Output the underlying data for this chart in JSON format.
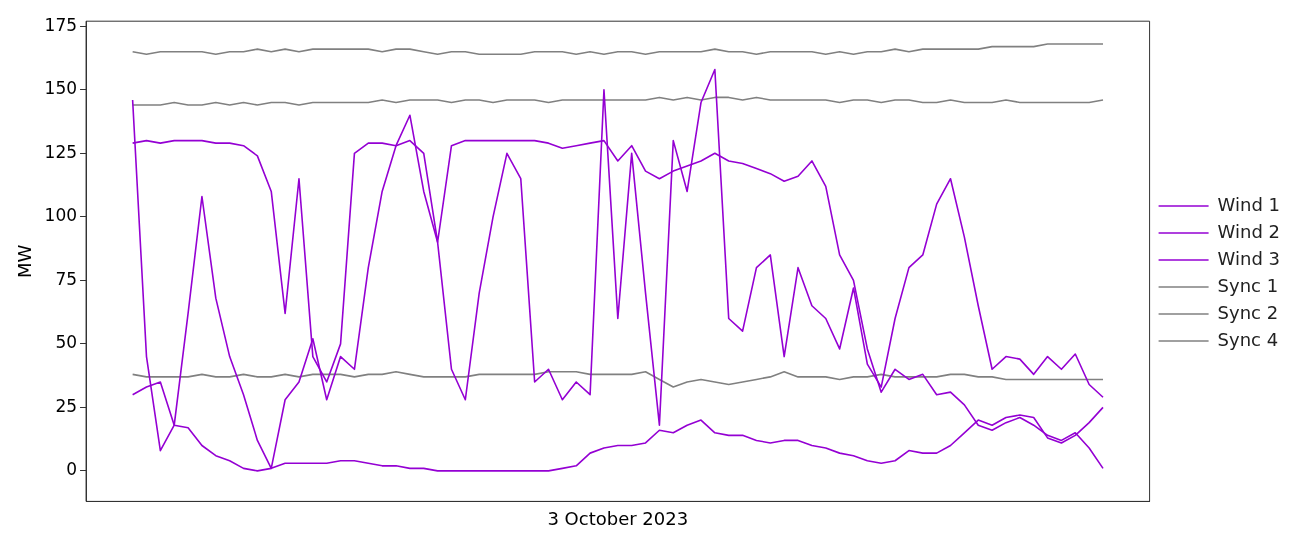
{
  "chart_data": {
    "type": "line",
    "xlabel": "3 October 2023",
    "ylabel": "MW",
    "ylim": [
      -12,
      177
    ],
    "yticks": [
      0,
      25,
      50,
      75,
      100,
      125,
      150,
      175
    ],
    "tick_labels": "y",
    "grid": false,
    "legend": "right",
    "marker": "none",
    "line_style": "solid",
    "categories": [
      null,
      null,
      null,
      null,
      null,
      null,
      null,
      null,
      null,
      null,
      null,
      null,
      null,
      null,
      null,
      null,
      null,
      null,
      null,
      null,
      null,
      null,
      null,
      null,
      null,
      null,
      null,
      null,
      null,
      null,
      null,
      null,
      null,
      null,
      null,
      null,
      null,
      null,
      null,
      null,
      null,
      null,
      null,
      null,
      null,
      null,
      null,
      null,
      null,
      null,
      null,
      null,
      null,
      null,
      null,
      null,
      null,
      null,
      null,
      null,
      null,
      null,
      null,
      null,
      null,
      null,
      null,
      null,
      null,
      null,
      null
    ],
    "series": [
      {
        "name": "Wind 1",
        "color": "#9400d3",
        "values": [
          129,
          130,
          129,
          130,
          130,
          130,
          129,
          129,
          128,
          124,
          110,
          62,
          115,
          45,
          35,
          50,
          125,
          129,
          129,
          128,
          130,
          125,
          90,
          128,
          130,
          130,
          130,
          130,
          130,
          130,
          129,
          127,
          128,
          129,
          130,
          122,
          128,
          118,
          115,
          118,
          120,
          122,
          125,
          122,
          121,
          119,
          117,
          114,
          116,
          122,
          112,
          85,
          75,
          48,
          31,
          40,
          36,
          38,
          30,
          31,
          26,
          18,
          16,
          19,
          21,
          18,
          14,
          12,
          15,
          9,
          1
        ]
      },
      {
        "name": "Wind 2",
        "color": "#9400d3",
        "values": [
          146,
          45,
          8,
          18,
          62,
          108,
          68,
          45,
          30,
          12,
          1,
          28,
          35,
          52,
          28,
          45,
          40,
          80,
          110,
          128,
          140,
          110,
          90,
          40,
          28,
          70,
          100,
          125,
          115,
          35,
          40,
          28,
          35,
          30,
          150,
          60,
          125,
          70,
          18,
          130,
          110,
          145,
          158,
          60,
          55,
          80,
          85,
          45,
          80,
          65,
          60,
          48,
          72,
          42,
          33,
          60,
          80,
          85,
          105,
          115,
          92,
          65,
          40,
          45,
          44,
          38,
          45,
          40,
          46,
          34,
          29
        ]
      },
      {
        "name": "Wind 3",
        "color": "#9400d3",
        "values": [
          30,
          33,
          35,
          18,
          17,
          10,
          6,
          4,
          1,
          0,
          1,
          3,
          3,
          3,
          3,
          4,
          4,
          3,
          2,
          2,
          1,
          1,
          0,
          0,
          0,
          0,
          0,
          0,
          0,
          0,
          0,
          1,
          2,
          7,
          9,
          10,
          10,
          11,
          16,
          15,
          18,
          20,
          15,
          14,
          14,
          12,
          11,
          12,
          12,
          10,
          9,
          7,
          6,
          4,
          3,
          4,
          8,
          7,
          7,
          10,
          15,
          20,
          18,
          21,
          22,
          21,
          13,
          11,
          14,
          19,
          25
        ]
      },
      {
        "name": "Sync 1",
        "color": "#808080",
        "values": [
          165,
          164,
          165,
          165,
          165,
          165,
          164,
          165,
          165,
          166,
          165,
          166,
          165,
          166,
          166,
          166,
          166,
          166,
          165,
          166,
          166,
          165,
          164,
          165,
          165,
          164,
          164,
          164,
          164,
          165,
          165,
          165,
          164,
          165,
          164,
          165,
          165,
          164,
          165,
          165,
          165,
          165,
          166,
          165,
          165,
          164,
          165,
          165,
          165,
          165,
          164,
          165,
          164,
          165,
          165,
          166,
          165,
          166,
          166,
          166,
          166,
          166,
          167,
          167,
          167,
          167,
          168,
          168,
          168,
          168,
          168
        ]
      },
      {
        "name": "Sync 2",
        "color": "#808080",
        "values": [
          144,
          144,
          144,
          145,
          144,
          144,
          145,
          144,
          145,
          144,
          145,
          145,
          144,
          145,
          145,
          145,
          145,
          145,
          146,
          145,
          146,
          146,
          146,
          145,
          146,
          146,
          145,
          146,
          146,
          146,
          145,
          146,
          146,
          146,
          146,
          146,
          146,
          146,
          147,
          146,
          147,
          146,
          147,
          147,
          146,
          147,
          146,
          146,
          146,
          146,
          146,
          145,
          146,
          146,
          145,
          146,
          146,
          145,
          145,
          146,
          145,
          145,
          145,
          146,
          145,
          145,
          145,
          145,
          145,
          145,
          146
        ]
      },
      {
        "name": "Sync 4",
        "color": "#808080",
        "values": [
          38,
          37,
          37,
          37,
          37,
          38,
          37,
          37,
          38,
          37,
          37,
          38,
          37,
          38,
          38,
          38,
          37,
          38,
          38,
          39,
          38,
          37,
          37,
          37,
          37,
          38,
          38,
          38,
          38,
          38,
          39,
          39,
          39,
          38,
          38,
          38,
          38,
          39,
          36,
          33,
          35,
          36,
          35,
          34,
          35,
          36,
          37,
          39,
          37,
          37,
          37,
          36,
          37,
          37,
          38,
          37,
          37,
          37,
          37,
          38,
          38,
          37,
          37,
          36,
          36,
          36,
          36,
          36,
          36,
          36,
          36
        ]
      }
    ]
  }
}
